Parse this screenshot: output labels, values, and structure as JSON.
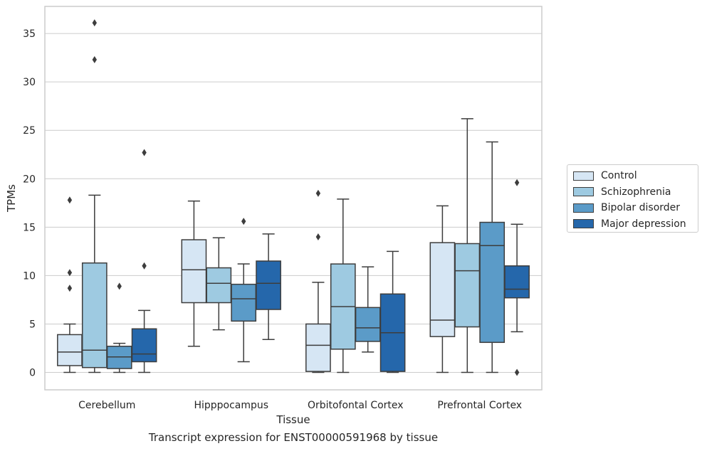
{
  "chart_data": {
    "type": "box",
    "xlabel": "Tissue",
    "ylabel": "TPMs",
    "ylim": [
      -1.8,
      37.8
    ],
    "yticks": [
      0,
      5,
      10,
      15,
      20,
      25,
      30,
      35
    ],
    "grid": true,
    "legend_position": "right",
    "categories": [
      "Cerebellum",
      "Hipppocampus",
      "Orbitofontal Cortex",
      "Prefrontal Cortex"
    ],
    "series": [
      {
        "name": "Control",
        "color": "#d6e6f4",
        "boxes": [
          {
            "whislo": 0,
            "q1": 0.7,
            "med": 2.1,
            "q3": 3.9,
            "whishi": 5.0,
            "fliers": [
              17.8,
              10.3,
              8.7
            ]
          },
          {
            "whislo": 2.7,
            "q1": 7.2,
            "med": 10.6,
            "q3": 13.7,
            "whishi": 17.7,
            "fliers": []
          },
          {
            "whislo": 0,
            "q1": 0.1,
            "med": 2.8,
            "q3": 5.0,
            "whishi": 9.3,
            "fliers": [
              18.5,
              14.0
            ]
          },
          {
            "whislo": 0,
            "q1": 3.7,
            "med": 5.4,
            "q3": 13.4,
            "whishi": 17.2,
            "fliers": []
          }
        ]
      },
      {
        "name": "Schizophrenia",
        "color": "#9ecae1",
        "boxes": [
          {
            "whislo": 0,
            "q1": 0.5,
            "med": 2.3,
            "q3": 11.3,
            "whishi": 18.3,
            "fliers": [
              36.1,
              32.3
            ]
          },
          {
            "whislo": 4.4,
            "q1": 7.2,
            "med": 9.2,
            "q3": 10.8,
            "whishi": 13.9,
            "fliers": []
          },
          {
            "whislo": 0,
            "q1": 2.4,
            "med": 6.8,
            "q3": 11.2,
            "whishi": 17.9,
            "fliers": []
          },
          {
            "whislo": 0,
            "q1": 4.7,
            "med": 10.5,
            "q3": 13.3,
            "whishi": 26.2,
            "fliers": []
          }
        ]
      },
      {
        "name": "Bipolar disorder",
        "color": "#5b9bc8",
        "boxes": [
          {
            "whislo": 0,
            "q1": 0.4,
            "med": 1.6,
            "q3": 2.7,
            "whishi": 3.0,
            "fliers": [
              8.9
            ]
          },
          {
            "whislo": 1.1,
            "q1": 5.3,
            "med": 7.6,
            "q3": 9.1,
            "whishi": 11.2,
            "fliers": [
              15.6
            ]
          },
          {
            "whislo": 2.1,
            "q1": 3.2,
            "med": 4.6,
            "q3": 6.7,
            "whishi": 10.9,
            "fliers": []
          },
          {
            "whislo": 0,
            "q1": 3.1,
            "med": 13.1,
            "q3": 15.5,
            "whishi": 23.8,
            "fliers": []
          }
        ]
      },
      {
        "name": "Major depression",
        "color": "#2567ab",
        "boxes": [
          {
            "whislo": 0,
            "q1": 1.1,
            "med": 1.9,
            "q3": 4.5,
            "whishi": 6.4,
            "fliers": [
              22.7,
              11.0
            ]
          },
          {
            "whislo": 3.4,
            "q1": 6.5,
            "med": 9.2,
            "q3": 11.5,
            "whishi": 14.3,
            "fliers": []
          },
          {
            "whislo": 0,
            "q1": 0.1,
            "med": 4.1,
            "q3": 8.1,
            "whishi": 12.5,
            "fliers": []
          },
          {
            "whislo": 4.2,
            "q1": 7.7,
            "med": 8.6,
            "q3": 11.0,
            "whishi": 15.3,
            "fliers": [
              19.6,
              0
            ]
          }
        ]
      }
    ],
    "caption": "Transcript expression for ENST00000591968 by tissue"
  }
}
